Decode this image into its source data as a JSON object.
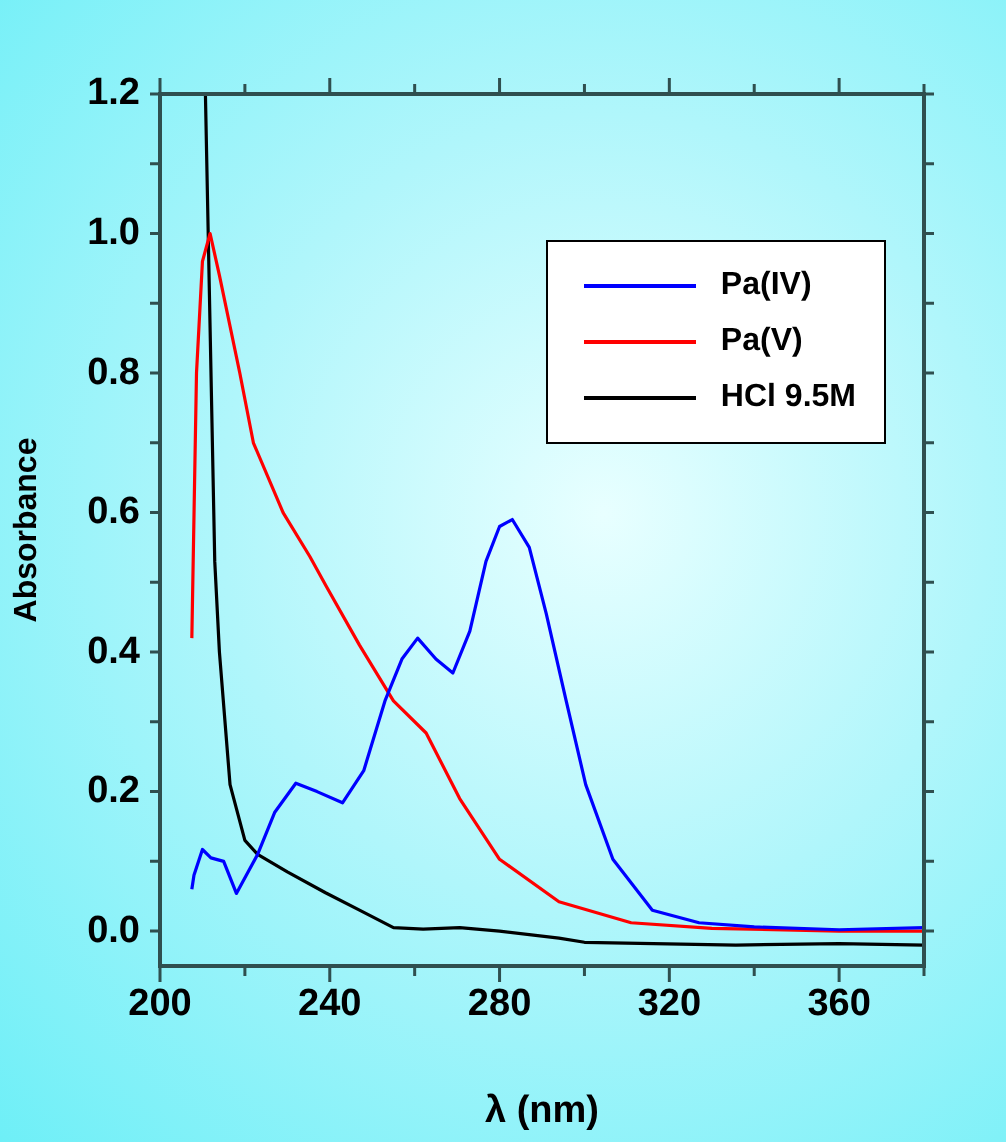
{
  "chart_data": {
    "type": "line",
    "xlabel": "λ (nm)",
    "ylabel": "Absorbance",
    "xlim": [
      200,
      380
    ],
    "ylim": [
      -0.05,
      1.2
    ],
    "xticks": [
      200,
      {
        "value": 220,
        "label": null
      },
      240,
      {
        "value": 260,
        "label": null
      },
      280,
      {
        "value": 300,
        "label": null
      },
      320,
      {
        "value": 340,
        "label": null
      },
      360,
      {
        "value": 380,
        "label": null
      }
    ],
    "yticks": [
      {
        "value": 0,
        "label": "0.0"
      },
      {
        "value": 0.1,
        "label": null
      },
      {
        "value": 0.2,
        "label": "0.2"
      },
      {
        "value": 0.3,
        "label": null
      },
      {
        "value": 0.4,
        "label": "0.4"
      },
      {
        "value": 0.5,
        "label": null
      },
      {
        "value": 0.6,
        "label": "0.6"
      },
      {
        "value": 0.7,
        "label": null
      },
      {
        "value": 0.8,
        "label": "0.8"
      },
      {
        "value": 0.9,
        "label": null
      },
      {
        "value": 1,
        "label": "1.0"
      },
      {
        "value": 1.1,
        "label": null
      },
      {
        "value": 1.2,
        "label": "1.2"
      }
    ],
    "legend": "top right",
    "grid": false,
    "marker": "none",
    "line_style": "solid",
    "series": [
      {
        "name": "Pa(IV)",
        "color": "#0000ff",
        "x": [
          207.5,
          208,
          210,
          212,
          215,
          218,
          223,
          227,
          232,
          237,
          243,
          248,
          253,
          257,
          260.7,
          265,
          269,
          273,
          276.8,
          280,
          283,
          287,
          291,
          295.7,
          300.3,
          306.7,
          316,
          327,
          340,
          360,
          380
        ],
        "values": [
          0.06,
          0.08,
          0.117,
          0.105,
          0.1,
          0.054,
          0.11,
          0.17,
          0.212,
          0.2,
          0.184,
          0.23,
          0.33,
          0.39,
          0.42,
          0.39,
          0.37,
          0.43,
          0.53,
          0.58,
          0.59,
          0.55,
          0.455,
          0.33,
          0.21,
          0.103,
          0.03,
          0.012,
          0.006,
          0.002,
          0.005
        ]
      },
      {
        "name": "Pa(V)",
        "color": "#ff0000",
        "x": [
          207.5,
          208.6,
          210,
          211.8,
          214,
          218.8,
          222,
          229,
          235.3,
          239.2,
          247,
          255,
          262.7,
          270.6,
          280,
          294,
          311,
          330,
          360,
          380
        ],
        "values": [
          0.42,
          0.8,
          0.96,
          1.0,
          0.94,
          0.8,
          0.7,
          0.6,
          0.537,
          0.494,
          0.41,
          0.33,
          0.284,
          0.19,
          0.103,
          0.042,
          0.012,
          0.004,
          0.0,
          0.0
        ]
      },
      {
        "name": "HCl 9.5M",
        "color": "#000000",
        "x": [
          210.7,
          212.9,
          214,
          216.5,
          220,
          223,
          230,
          239,
          247,
          255,
          262,
          270.6,
          280,
          294,
          300,
          335.7,
          360,
          380
        ],
        "values": [
          1.2,
          0.53,
          0.4,
          0.21,
          0.13,
          0.11,
          0.085,
          0.055,
          0.03,
          0.005,
          0.003,
          0.005,
          0.0,
          -0.01,
          -0.016,
          -0.02,
          -0.018,
          -0.02
        ]
      }
    ]
  }
}
